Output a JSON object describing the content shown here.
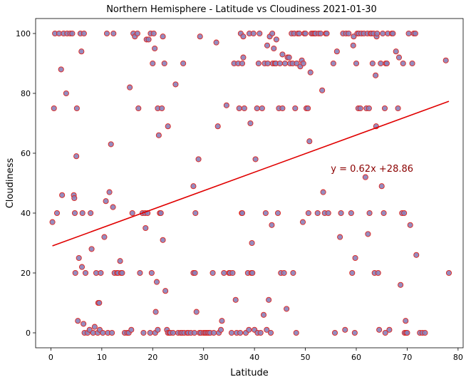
{
  "chart_data": {
    "type": "scatter",
    "title": "Northern Hemisphere - Latitude vs Cloudiness 2021-01-30",
    "xlabel": "Latitude",
    "ylabel": "Cloudiness",
    "xlim": [
      -3,
      81
    ],
    "ylim": [
      -5,
      105
    ],
    "xticks": [
      0,
      10,
      20,
      30,
      40,
      50,
      60,
      70,
      80
    ],
    "yticks": [
      0,
      20,
      40,
      60,
      80,
      100
    ],
    "grid": false,
    "regression": {
      "slope": 0.62,
      "intercept": 28.86,
      "x_range": [
        0.3,
        78.2
      ],
      "equation_label": "y = 0.62x +28.86",
      "label_position": [
        55,
        55
      ]
    },
    "colors": {
      "point_fill": "#8a7fb8",
      "point_edge": "#e0231c",
      "line": "#e00000",
      "annotation": "#8b0000"
    },
    "points": [
      [
        0.3,
        37
      ],
      [
        0.6,
        75
      ],
      [
        0.8,
        100
      ],
      [
        1.2,
        40
      ],
      [
        1.6,
        100
      ],
      [
        2.0,
        88
      ],
      [
        2.2,
        46
      ],
      [
        2.5,
        100
      ],
      [
        3.0,
        80
      ],
      [
        3.2,
        100
      ],
      [
        3.8,
        100
      ],
      [
        4.2,
        100
      ],
      [
        4.5,
        46
      ],
      [
        4.6,
        45
      ],
      [
        4.7,
        40
      ],
      [
        4.8,
        20
      ],
      [
        5.0,
        59
      ],
      [
        5.1,
        75
      ],
      [
        5.3,
        4
      ],
      [
        5.5,
        25
      ],
      [
        5.8,
        100
      ],
      [
        6.0,
        94
      ],
      [
        6.1,
        22
      ],
      [
        6.2,
        40
      ],
      [
        6.4,
        3
      ],
      [
        6.5,
        100
      ],
      [
        6.6,
        0
      ],
      [
        6.8,
        20
      ],
      [
        7.2,
        0
      ],
      [
        7.6,
        1
      ],
      [
        7.8,
        40
      ],
      [
        8.0,
        28
      ],
      [
        8.3,
        0
      ],
      [
        8.6,
        2
      ],
      [
        8.9,
        20
      ],
      [
        9.2,
        0
      ],
      [
        9.3,
        10
      ],
      [
        9.5,
        10
      ],
      [
        9.6,
        1
      ],
      [
        9.8,
        20
      ],
      [
        10.2,
        0
      ],
      [
        10.5,
        32
      ],
      [
        10.8,
        44
      ],
      [
        11.0,
        100
      ],
      [
        11.2,
        0
      ],
      [
        11.5,
        47
      ],
      [
        11.8,
        63
      ],
      [
        12.0,
        0
      ],
      [
        12.2,
        42
      ],
      [
        12.3,
        100
      ],
      [
        12.5,
        20
      ],
      [
        13.0,
        20
      ],
      [
        13.2,
        20
      ],
      [
        13.6,
        24
      ],
      [
        13.8,
        20
      ],
      [
        14.0,
        20
      ],
      [
        14.5,
        0
      ],
      [
        15.0,
        0
      ],
      [
        15.3,
        0
      ],
      [
        15.5,
        82
      ],
      [
        15.8,
        1
      ],
      [
        16.0,
        40
      ],
      [
        16.2,
        100
      ],
      [
        16.5,
        99
      ],
      [
        17.0,
        100
      ],
      [
        17.2,
        75
      ],
      [
        17.5,
        20
      ],
      [
        18.0,
        40
      ],
      [
        18.2,
        0
      ],
      [
        18.5,
        40
      ],
      [
        18.6,
        35
      ],
      [
        18.8,
        98
      ],
      [
        19.0,
        40
      ],
      [
        19.2,
        98
      ],
      [
        19.5,
        0
      ],
      [
        19.6,
        100
      ],
      [
        19.8,
        20
      ],
      [
        20.0,
        90
      ],
      [
        20.2,
        100
      ],
      [
        20.4,
        95
      ],
      [
        20.5,
        0
      ],
      [
        20.6,
        7
      ],
      [
        20.8,
        17
      ],
      [
        21.0,
        75
      ],
      [
        21.0,
        1
      ],
      [
        21.2,
        66
      ],
      [
        21.4,
        40
      ],
      [
        21.6,
        40
      ],
      [
        21.8,
        75
      ],
      [
        22.0,
        31
      ],
      [
        22.0,
        99
      ],
      [
        22.3,
        90
      ],
      [
        22.5,
        14
      ],
      [
        22.8,
        1
      ],
      [
        23.0,
        0
      ],
      [
        23.0,
        69
      ],
      [
        23.3,
        0
      ],
      [
        23.5,
        0
      ],
      [
        24.0,
        0
      ],
      [
        24.5,
        83
      ],
      [
        25.0,
        0
      ],
      [
        25.5,
        0
      ],
      [
        25.8,
        0
      ],
      [
        26.0,
        90
      ],
      [
        26.2,
        0
      ],
      [
        26.8,
        0
      ],
      [
        27.0,
        0
      ],
      [
        27.5,
        0
      ],
      [
        28.0,
        49
      ],
      [
        28.0,
        20
      ],
      [
        28.2,
        0
      ],
      [
        28.3,
        20
      ],
      [
        28.4,
        40
      ],
      [
        28.6,
        7
      ],
      [
        29.0,
        58
      ],
      [
        29.2,
        0
      ],
      [
        29.3,
        99
      ],
      [
        29.5,
        0
      ],
      [
        30.0,
        0
      ],
      [
        30.3,
        0
      ],
      [
        30.5,
        0
      ],
      [
        30.8,
        0
      ],
      [
        31.0,
        0
      ],
      [
        31.3,
        0
      ],
      [
        31.8,
        20
      ],
      [
        32.0,
        0
      ],
      [
        32.5,
        97
      ],
      [
        32.8,
        69
      ],
      [
        33.0,
        0
      ],
      [
        33.4,
        1
      ],
      [
        33.6,
        4
      ],
      [
        34.0,
        20
      ],
      [
        34.5,
        76
      ],
      [
        35.0,
        20
      ],
      [
        35.2,
        20
      ],
      [
        35.5,
        0
      ],
      [
        35.7,
        20
      ],
      [
        36.0,
        90
      ],
      [
        36.3,
        11
      ],
      [
        36.5,
        0
      ],
      [
        36.8,
        90
      ],
      [
        37.0,
        75
      ],
      [
        37.2,
        0
      ],
      [
        37.3,
        100
      ],
      [
        37.5,
        40
      ],
      [
        37.6,
        90
      ],
      [
        37.6,
        40
      ],
      [
        37.8,
        92
      ],
      [
        37.8,
        99
      ],
      [
        38.0,
        75
      ],
      [
        38.3,
        0
      ],
      [
        38.7,
        20
      ],
      [
        38.9,
        1
      ],
      [
        39.0,
        100
      ],
      [
        39.2,
        70
      ],
      [
        39.4,
        20
      ],
      [
        39.5,
        30
      ],
      [
        39.6,
        20
      ],
      [
        39.8,
        100
      ],
      [
        40.0,
        1
      ],
      [
        40.2,
        58
      ],
      [
        40.5,
        75
      ],
      [
        40.6,
        0
      ],
      [
        40.8,
        90
      ],
      [
        41.0,
        100
      ],
      [
        41.2,
        0
      ],
      [
        41.5,
        75
      ],
      [
        41.8,
        6
      ],
      [
        42.0,
        90
      ],
      [
        42.2,
        40
      ],
      [
        42.4,
        1
      ],
      [
        42.5,
        96
      ],
      [
        42.6,
        90
      ],
      [
        42.8,
        11
      ],
      [
        43.0,
        99
      ],
      [
        43.2,
        0
      ],
      [
        43.4,
        36
      ],
      [
        43.5,
        100
      ],
      [
        43.6,
        90
      ],
      [
        43.8,
        95
      ],
      [
        44.0,
        90
      ],
      [
        44.2,
        90
      ],
      [
        44.3,
        98
      ],
      [
        44.6,
        40
      ],
      [
        44.8,
        75
      ],
      [
        45.0,
        90
      ],
      [
        45.2,
        20
      ],
      [
        45.5,
        93
      ],
      [
        45.5,
        75
      ],
      [
        45.8,
        20
      ],
      [
        46.0,
        90
      ],
      [
        46.3,
        8
      ],
      [
        46.5,
        92
      ],
      [
        46.8,
        92
      ],
      [
        47.0,
        90
      ],
      [
        47.3,
        100
      ],
      [
        47.5,
        90
      ],
      [
        47.6,
        20
      ],
      [
        47.8,
        100
      ],
      [
        48.0,
        75
      ],
      [
        48.2,
        0
      ],
      [
        48.3,
        90
      ],
      [
        48.5,
        100
      ],
      [
        48.8,
        100
      ],
      [
        49.0,
        89
      ],
      [
        49.3,
        91
      ],
      [
        49.5,
        37
      ],
      [
        49.6,
        90
      ],
      [
        49.8,
        100
      ],
      [
        50.0,
        100
      ],
      [
        50.2,
        75
      ],
      [
        50.5,
        75
      ],
      [
        50.6,
        40
      ],
      [
        50.8,
        64
      ],
      [
        51.0,
        87
      ],
      [
        51.2,
        100
      ],
      [
        51.5,
        100
      ],
      [
        51.8,
        100
      ],
      [
        52.0,
        100
      ],
      [
        52.4,
        40
      ],
      [
        52.6,
        100
      ],
      [
        53.0,
        100
      ],
      [
        53.3,
        81
      ],
      [
        53.8,
        40
      ],
      [
        53.5,
        47
      ],
      [
        54.0,
        100
      ],
      [
        54.2,
        100
      ],
      [
        54.5,
        40
      ],
      [
        55.5,
        90
      ],
      [
        55.8,
        0
      ],
      [
        56.2,
        94
      ],
      [
        56.8,
        32
      ],
      [
        57.0,
        40
      ],
      [
        57.4,
        100
      ],
      [
        57.8,
        1
      ],
      [
        58.0,
        100
      ],
      [
        58.5,
        100
      ],
      [
        59.0,
        40
      ],
      [
        59.2,
        20
      ],
      [
        59.4,
        96
      ],
      [
        59.5,
        99
      ],
      [
        59.7,
        0
      ],
      [
        59.8,
        25
      ],
      [
        60.0,
        90
      ],
      [
        60.2,
        100
      ],
      [
        60.4,
        75
      ],
      [
        60.5,
        100
      ],
      [
        60.8,
        75
      ],
      [
        61.0,
        100
      ],
      [
        61.5,
        100
      ],
      [
        61.8,
        52
      ],
      [
        62.0,
        75
      ],
      [
        62.2,
        100
      ],
      [
        62.3,
        33
      ],
      [
        62.5,
        75
      ],
      [
        62.6,
        40
      ],
      [
        62.8,
        100
      ],
      [
        63.0,
        100
      ],
      [
        63.2,
        90
      ],
      [
        63.4,
        100
      ],
      [
        63.6,
        20
      ],
      [
        63.8,
        86
      ],
      [
        63.9,
        69
      ],
      [
        64.0,
        99
      ],
      [
        64.1,
        100
      ],
      [
        64.3,
        20
      ],
      [
        64.5,
        1
      ],
      [
        64.8,
        90
      ],
      [
        65.0,
        49
      ],
      [
        65.2,
        100
      ],
      [
        65.4,
        40
      ],
      [
        65.6,
        75
      ],
      [
        65.7,
        0
      ],
      [
        65.8,
        90
      ],
      [
        66.0,
        90
      ],
      [
        66.2,
        100
      ],
      [
        66.5,
        1
      ],
      [
        67.0,
        100
      ],
      [
        67.2,
        100
      ],
      [
        67.8,
        94
      ],
      [
        68.2,
        75
      ],
      [
        68.4,
        92
      ],
      [
        68.7,
        16
      ],
      [
        69.0,
        40
      ],
      [
        69.2,
        90
      ],
      [
        69.4,
        40
      ],
      [
        69.5,
        0
      ],
      [
        69.7,
        4
      ],
      [
        69.8,
        0
      ],
      [
        70.0,
        0
      ],
      [
        70.3,
        100
      ],
      [
        70.6,
        36
      ],
      [
        71.0,
        90
      ],
      [
        71.3,
        100
      ],
      [
        71.6,
        100
      ],
      [
        71.8,
        26
      ],
      [
        72.5,
        0
      ],
      [
        73.0,
        0
      ],
      [
        73.5,
        0
      ],
      [
        77.6,
        91
      ],
      [
        78.2,
        20
      ]
    ]
  }
}
